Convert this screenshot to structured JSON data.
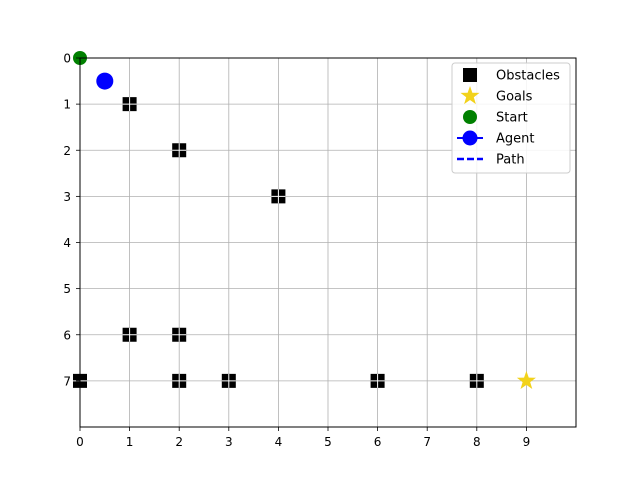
{
  "chart_data": {
    "type": "scatter",
    "xlim": [
      0,
      10
    ],
    "ylim": [
      8,
      0
    ],
    "y_inverted": true,
    "grid": true,
    "xticks": [
      "0",
      "1",
      "2",
      "3",
      "4",
      "5",
      "6",
      "7",
      "8",
      "9"
    ],
    "yticks": [
      "0",
      "1",
      "2",
      "3",
      "4",
      "5",
      "6",
      "7"
    ],
    "legend_position": "top-right",
    "legend": [
      "Obstacles",
      "Goals",
      "Start",
      "Agent",
      "Path"
    ],
    "series": [
      {
        "name": "Obstacles",
        "marker": "square",
        "color": "#000000",
        "points": [
          [
            1,
            1
          ],
          [
            2,
            2
          ],
          [
            4,
            3
          ],
          [
            1,
            6
          ],
          [
            2,
            6
          ],
          [
            0,
            7
          ],
          [
            2,
            7
          ],
          [
            3,
            7
          ],
          [
            6,
            7
          ],
          [
            8,
            7
          ]
        ]
      },
      {
        "name": "Goals",
        "marker": "star",
        "color": "#f2d21b",
        "points": [
          [
            9,
            7
          ]
        ]
      },
      {
        "name": "Start",
        "marker": "circle",
        "color": "#008000",
        "points": [
          [
            0,
            0
          ]
        ]
      },
      {
        "name": "Agent",
        "marker": "circle",
        "color": "#0000ff",
        "points": [
          [
            0.5,
            0.5
          ]
        ]
      },
      {
        "name": "Path",
        "marker": "dashed-line",
        "color": "#0000ff",
        "points": []
      }
    ]
  }
}
